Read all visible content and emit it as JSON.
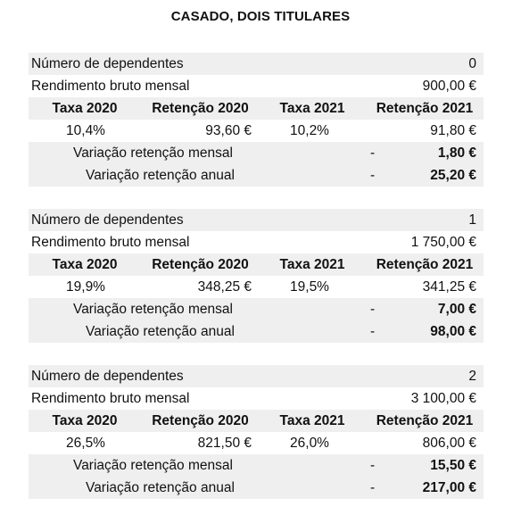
{
  "title": "CASADO, DOIS TITULARES",
  "labels": {
    "dependentes": "Número de dependentes",
    "rendimento": "Rendimento bruto mensal",
    "h_taxa2020": "Taxa 2020",
    "h_ret2020": "Retenção 2020",
    "h_taxa2021": "Taxa 2021",
    "h_ret2021": "Retenção 2021",
    "var_mensal": "Variação retenção mensal",
    "var_anual": "Variação retenção anual",
    "dash": "-"
  },
  "blocks": [
    {
      "dependentes": "0",
      "rendimento": "900,00 €",
      "taxa2020": "10,4%",
      "ret2020": "93,60 €",
      "taxa2021": "10,2%",
      "ret2021": "91,80 €",
      "var_mensal": "1,80 €",
      "var_anual": "25,20 €"
    },
    {
      "dependentes": "1",
      "rendimento": "1 750,00 €",
      "taxa2020": "19,9%",
      "ret2020": "348,25 €",
      "taxa2021": "19,5%",
      "ret2021": "341,25 €",
      "var_mensal": "7,00 €",
      "var_anual": "98,00 €"
    },
    {
      "dependentes": "2",
      "rendimento": "3 100,00 €",
      "taxa2020": "26,5%",
      "ret2020": "821,50 €",
      "taxa2021": "26,0%",
      "ret2021": "806,00 €",
      "var_mensal": "15,50 €",
      "var_anual": "217,00 €"
    }
  ]
}
